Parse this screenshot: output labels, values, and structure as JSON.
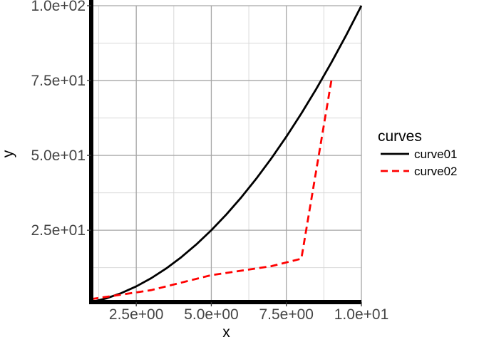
{
  "chart_data": {
    "type": "line",
    "title": "",
    "xlabel": "x",
    "ylabel": "y",
    "xlim": [
      1,
      10
    ],
    "ylim": [
      1,
      100
    ],
    "x_ticks": [
      2.5,
      5.0,
      7.5,
      10.0
    ],
    "x_tick_labels": [
      "2.5e+00",
      "5.0e+00",
      "7.5e+00",
      "1.0e+01"
    ],
    "y_ticks": [
      25,
      50,
      75,
      100
    ],
    "y_tick_labels": [
      "2.5e+01",
      "5.0e+01",
      "7.5e+01",
      "1.0e+02"
    ],
    "grid": true,
    "legend": {
      "title": "curves",
      "placement": "right"
    },
    "series": [
      {
        "name": "curve01",
        "color": "#000000",
        "dash": "solid",
        "x": [
          1,
          1.5,
          2,
          2.5,
          3,
          3.5,
          4,
          4.5,
          5,
          5.5,
          6,
          6.5,
          7,
          7.5,
          8,
          8.5,
          9,
          9.5,
          10
        ],
        "y": [
          1,
          2.25,
          4,
          6.25,
          9,
          12.25,
          16,
          20.25,
          25,
          30.25,
          36,
          42.25,
          49,
          56.25,
          64,
          72.25,
          81,
          90.25,
          100
        ]
      },
      {
        "name": "curve02",
        "color": "#ff0000",
        "dash": "dashed",
        "x": [
          1,
          3,
          5,
          7,
          8,
          9
        ],
        "y": [
          2,
          5,
          10,
          13,
          15.5,
          75
        ]
      }
    ]
  }
}
